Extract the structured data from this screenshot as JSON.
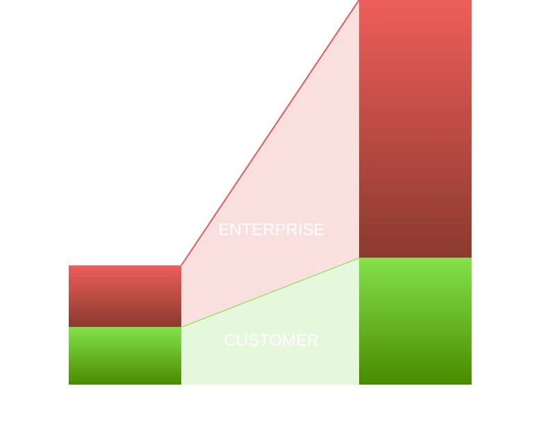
{
  "chart_data": {
    "type": "area",
    "title": "",
    "xlabel": "",
    "ylabel": "",
    "ylim": [
      0,
      100
    ],
    "categories": [
      "",
      ""
    ],
    "series": [
      {
        "name": "CUSTOMER",
        "values": [
          15,
          33
        ],
        "colors": {
          "bar_top": "#84e24b",
          "bar_bottom": "#4a8a00",
          "band_fill": "#e6f8dc",
          "line": "#7edb42",
          "label": "#ffffff"
        }
      },
      {
        "name": "ENTERPRISE",
        "values": [
          16,
          67
        ],
        "colors": {
          "bar_top": "#ed5e5a",
          "bar_bottom": "#8a3a2f",
          "band_fill": "#f9dfde",
          "line": "#e25b56",
          "label": "#ffffff"
        }
      }
    ],
    "grid": false,
    "legend": "none"
  }
}
